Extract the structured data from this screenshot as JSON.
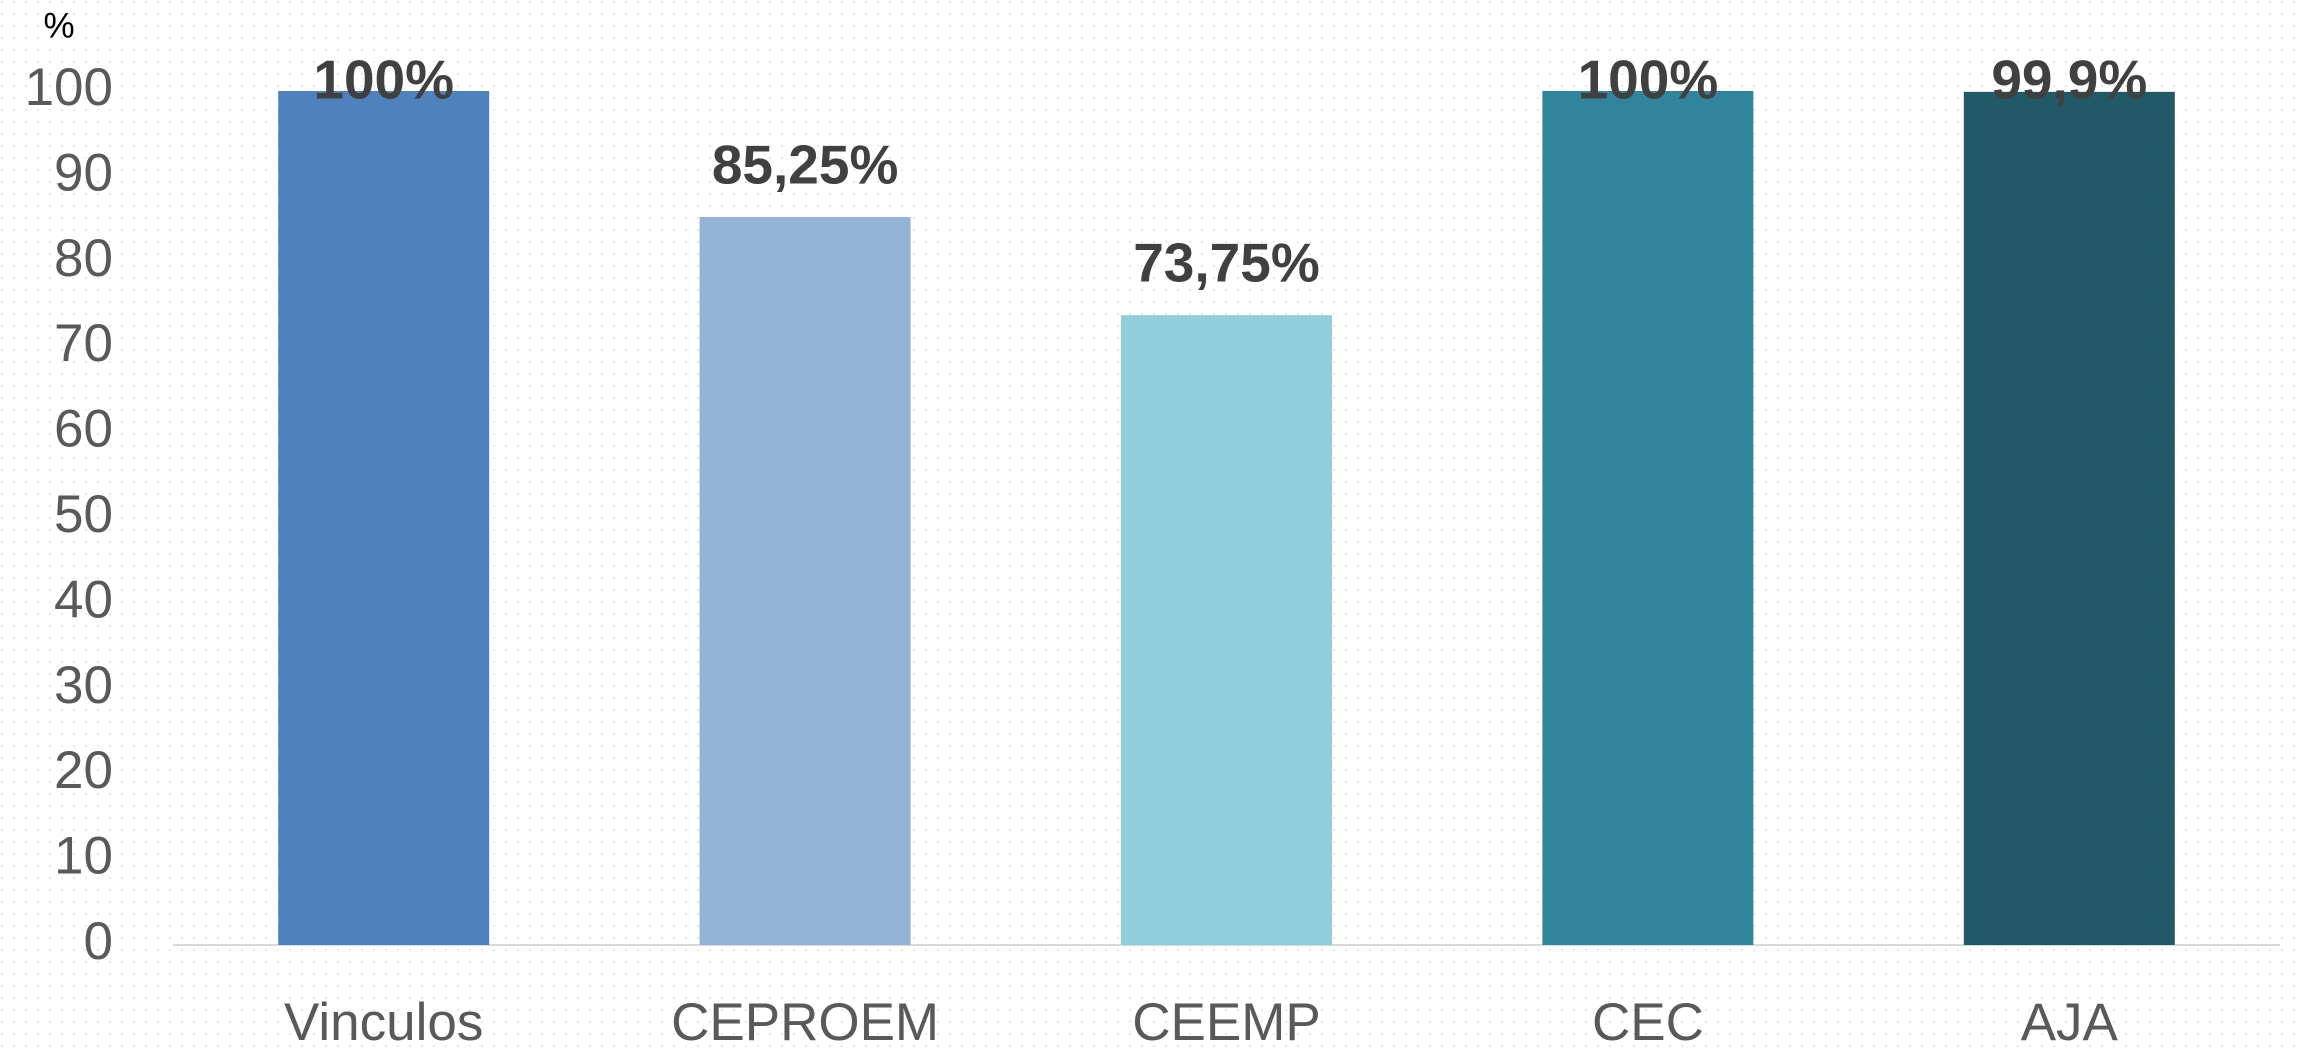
{
  "chart_data": {
    "type": "bar",
    "y_label": "%",
    "categories": [
      "Vinculos",
      "CEPROEM",
      "CEEMP",
      "CEC",
      "AJA"
    ],
    "values": [
      100,
      85.25,
      73.75,
      100,
      99.9
    ],
    "value_labels": [
      "100%",
      "85,25%",
      "73,75%",
      "100%",
      "99,9%"
    ],
    "colors": [
      "#4f81bd",
      "#95b3d7",
      "#92cddc",
      "#31849b",
      "#215967"
    ],
    "ylim": [
      0,
      100
    ],
    "yticks": [
      0,
      10,
      20,
      30,
      40,
      50,
      60,
      70,
      80,
      90,
      100
    ],
    "grid": false
  }
}
